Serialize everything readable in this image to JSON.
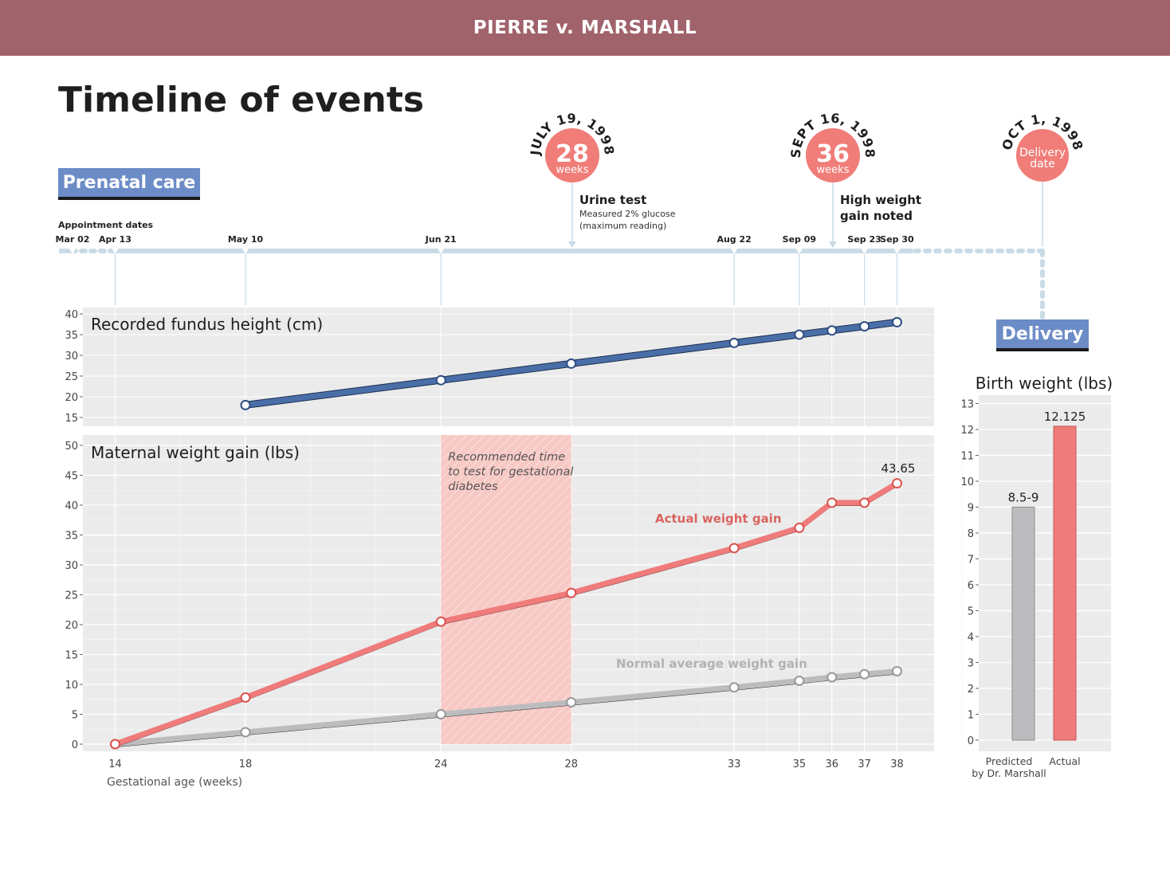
{
  "header": {
    "case_title": "PIERRE v. MARSHALL"
  },
  "page": {
    "title": "Timeline of events"
  },
  "sections": {
    "prenatal_label": "Prenatal care",
    "delivery_label": "Delivery"
  },
  "timeline": {
    "appointments_label": "Appointment dates",
    "dates": [
      {
        "label": "Mar 02",
        "week": null
      },
      {
        "label": "Apr 13",
        "week": 14
      },
      {
        "label": "May 10",
        "week": 18
      },
      {
        "label": "Jun 21",
        "week": 24
      },
      {
        "label": "Aug 22",
        "week": 33
      },
      {
        "label": "Sep 09",
        "week": 35
      },
      {
        "label": "Sep 23",
        "week": 37
      },
      {
        "label": "Sep 30",
        "week": 38
      }
    ],
    "milestones": [
      {
        "date_arc": "JULY 19, 1998",
        "big": "28",
        "small": "weeks",
        "week": 28,
        "event_title": "Urine test",
        "event_detail": [
          "Measured 2% glucose",
          "(maximum reading)"
        ]
      },
      {
        "date_arc": "SEPT 16, 1998",
        "big": "36",
        "small": "weeks",
        "week": 36,
        "event_title": "High weight gain noted",
        "event_title_lines": [
          "High weight",
          "gain noted"
        ]
      },
      {
        "date_arc": "OCT 1, 1998",
        "lines": [
          "Delivery",
          "date"
        ]
      }
    ]
  },
  "colors": {
    "banner": "#a0626b",
    "fundus": "#4a6fa8",
    "actual": "#ef7b7b",
    "normal": "#bcbcbf",
    "timeline": "#c9dbe6",
    "milestone": "#f07d78",
    "panel_bg": "#ebebeb",
    "band": "#f7c9c4",
    "tag": "#6c8cc7"
  },
  "chart_data": [
    {
      "type": "line",
      "title": "Recorded fundus height (cm)",
      "x": [
        18,
        24,
        28,
        33,
        35,
        36,
        37,
        38
      ],
      "series": [
        {
          "values": [
            18,
            24,
            28,
            33,
            35,
            36,
            37,
            38
          ]
        }
      ],
      "ylim": [
        13,
        41
      ],
      "yticks": [
        15,
        20,
        25,
        30,
        35,
        40
      ]
    },
    {
      "type": "line",
      "title": "Maternal weight gain (lbs)",
      "xlabel": "Gestational age (weeks)",
      "xticks": [
        14,
        18,
        24,
        28,
        33,
        35,
        36,
        37,
        38
      ],
      "ylim": [
        -1,
        51
      ],
      "yticks": [
        0,
        5,
        10,
        15,
        20,
        25,
        30,
        35,
        40,
        45,
        50
      ],
      "shaded_region": {
        "from": 24,
        "to": 28,
        "label": [
          "Recommended time",
          "to test for gestational",
          "diabetes"
        ]
      },
      "series": [
        {
          "name": "Actual weight gain",
          "x": [
            14,
            18,
            24,
            28,
            33,
            35,
            36,
            37,
            38
          ],
          "values": [
            0,
            7.8,
            20.5,
            25.3,
            32.8,
            36.2,
            40.4,
            40.4,
            43.65
          ]
        },
        {
          "name": "Normal average weight gain",
          "x": [
            14,
            18,
            24,
            28,
            33,
            35,
            36,
            37,
            38
          ],
          "values": [
            0,
            2,
            5,
            7,
            9.5,
            10.6,
            11.2,
            11.7,
            12.2
          ]
        }
      ],
      "end_label": "43.65"
    },
    {
      "type": "bar",
      "title": "Birth weight (lbs)",
      "categories": [
        "Predicted\nby Dr. Marshall",
        "Actual"
      ],
      "category_lines": [
        [
          "Predicted",
          "by Dr. Marshall"
        ],
        [
          "Actual"
        ]
      ],
      "values": [
        9,
        12.125
      ],
      "value_labels": [
        "8.5-9",
        "12.125"
      ],
      "ylim": [
        0,
        13
      ],
      "yticks": [
        0,
        1,
        2,
        3,
        4,
        5,
        6,
        7,
        8,
        9,
        10,
        11,
        12,
        13
      ]
    }
  ]
}
